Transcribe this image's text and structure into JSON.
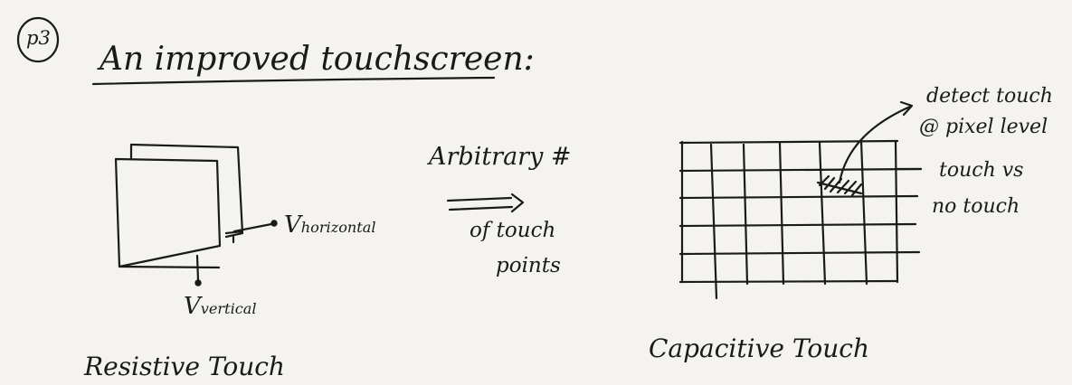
{
  "page_label": "p3",
  "title": "An improved touchscreen:",
  "resistive": {
    "v_horizontal_main": "V",
    "v_horizontal_sub": "horizontal",
    "v_vertical_main": "V",
    "v_vertical_sub": "vertical",
    "caption": "Resistive Touch"
  },
  "middle": {
    "line1": "Arbitrary #",
    "line2": "of touch",
    "line3": "points"
  },
  "capacitive": {
    "note_line1": "detect touch",
    "note_line2": "@ pixel level",
    "note_line3": "touch vs",
    "note_line4": "no touch",
    "caption": "Capacitive Touch"
  }
}
